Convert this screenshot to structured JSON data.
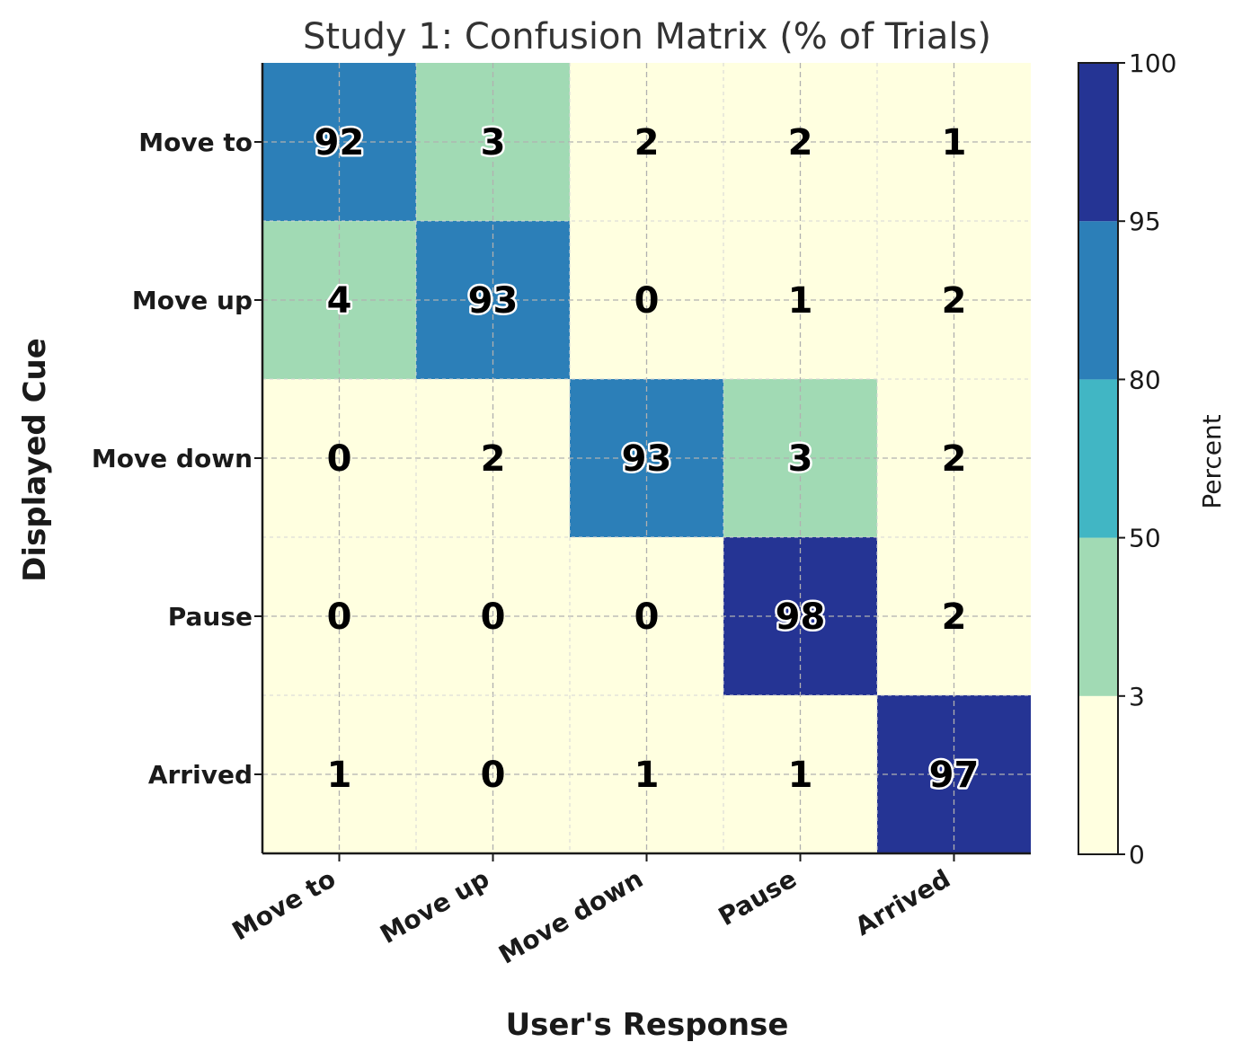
{
  "chart_data": {
    "type": "heatmap",
    "title": "Study 1: Confusion Matrix (% of Trials)",
    "xlabel": "User's Response",
    "ylabel": "Displayed Cue",
    "x_categories": [
      "Move to",
      "Move up",
      "Move down",
      "Pause",
      "Arrived"
    ],
    "y_categories": [
      "Move to",
      "Move up",
      "Move down",
      "Pause",
      "Arrived"
    ],
    "values": [
      [
        92,
        3,
        2,
        2,
        1
      ],
      [
        4,
        93,
        0,
        1,
        2
      ],
      [
        0,
        2,
        93,
        3,
        2
      ],
      [
        0,
        0,
        0,
        98,
        2
      ],
      [
        1,
        0,
        1,
        1,
        97
      ]
    ],
    "colorbar": {
      "label": "Percent",
      "boundaries": [
        0,
        3,
        50,
        80,
        95,
        100
      ],
      "tick_labels": [
        "0",
        "3",
        "50",
        "80",
        "95",
        "100"
      ],
      "colors": [
        "#ffffe0",
        "#a1dab4",
        "#41b6c4",
        "#2c7fb8",
        "#253494"
      ]
    },
    "grid": true,
    "label_colors": {
      "fill": "#000000",
      "outline_on_dark": "#ffffff"
    }
  }
}
